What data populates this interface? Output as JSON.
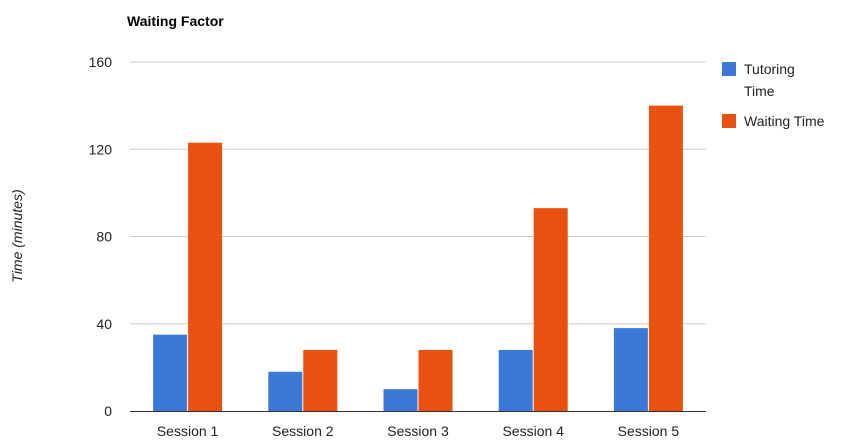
{
  "chart_data": {
    "type": "bar",
    "title": "Waiting Factor",
    "xlabel": "",
    "ylabel": "Time (minutes)",
    "ylim": [
      0,
      160
    ],
    "yticks": [
      "0",
      "40",
      "80",
      "120",
      "160"
    ],
    "categories": [
      "Session 1",
      "Session 2",
      "Session 3",
      "Session 4",
      "Session 5"
    ],
    "series": [
      {
        "name": "Tutoring Time",
        "legend_lines": [
          "Tutoring",
          "Time"
        ],
        "color": "#3c78d8",
        "values": [
          35,
          18,
          10,
          28,
          38
        ]
      },
      {
        "name": "Waiting Time",
        "legend_lines": [
          "Waiting Time"
        ],
        "color": "#e8510f",
        "values": [
          123,
          28,
          28,
          93,
          140
        ]
      }
    ],
    "grid": true,
    "legend_position": "right"
  }
}
